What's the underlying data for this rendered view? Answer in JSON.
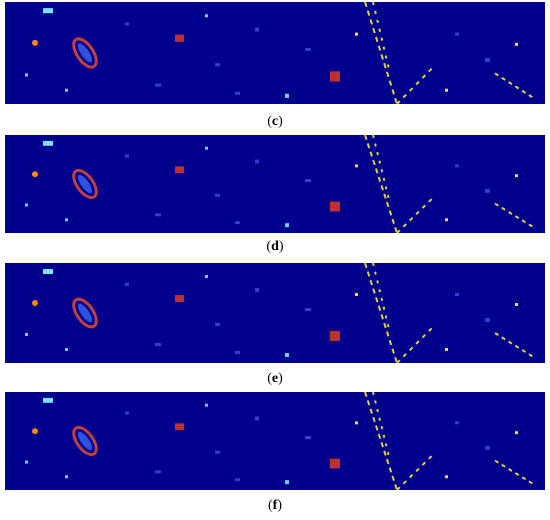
{
  "figure": {
    "panels": [
      {
        "label": "(c)"
      },
      {
        "label": "(d)"
      },
      {
        "label": "(e)"
      },
      {
        "label": "(f)"
      }
    ]
  }
}
